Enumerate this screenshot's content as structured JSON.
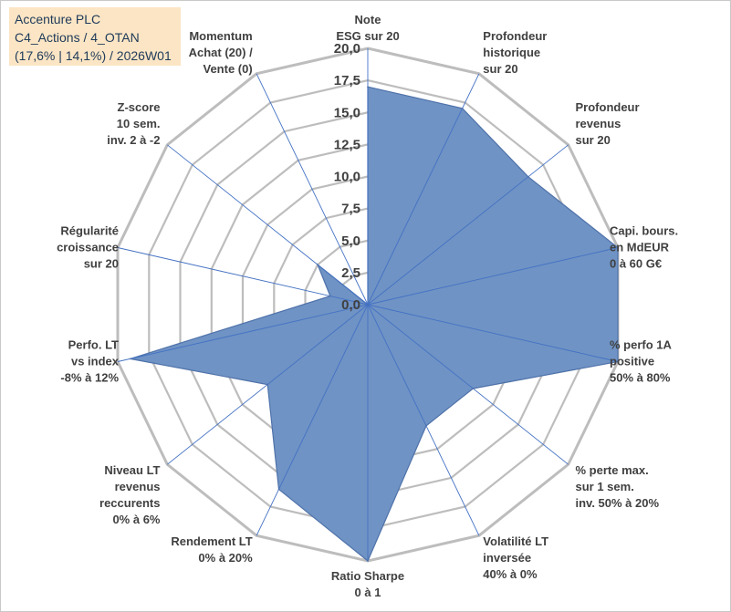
{
  "title": {
    "line1": "Accenture PLC",
    "line2": "C4_Actions / 4_OTAN",
    "line3": "(17,6% | 14,1%) / 2026W01"
  },
  "colors": {
    "fill": "#6f93c4",
    "stroke": "#4f72aa",
    "grid": "#bdbdbd",
    "spoke": "#4472c4",
    "title_bg": "#fbe5c4"
  },
  "chart_data": {
    "type": "radar",
    "rmin": 0,
    "rmax": 20,
    "tick_labels": [
      "0,0",
      "2,5",
      "5,0",
      "7,5",
      "10,0",
      "12,5",
      "15,0",
      "17,5",
      "20,0"
    ],
    "axes": [
      {
        "lines": [
          "Note",
          "ESG sur 20"
        ],
        "value": 17
      },
      {
        "lines": [
          "Profondeur",
          "historique",
          "sur 20"
        ],
        "value": 17
      },
      {
        "lines": [
          "Profondeur",
          "revenus",
          "sur 20"
        ],
        "value": 16
      },
      {
        "lines": [
          "Capi. bours.",
          "en MdEUR",
          "0 à 60 G€"
        ],
        "value": 20
      },
      {
        "lines": [
          "% perfo 1A",
          "positive",
          "50% à 80%"
        ],
        "value": 20
      },
      {
        "lines": [
          "% perte max.",
          "sur 1 sem.",
          "inv. 50% à 20%"
        ],
        "value": 10.5
      },
      {
        "lines": [
          "Volatilité LT",
          "inversée",
          "40% à 0%"
        ],
        "value": 10.5
      },
      {
        "lines": [
          "Ratio Sharpe",
          "0 à 1"
        ],
        "value": 20
      },
      {
        "lines": [
          "Rendement LT",
          "0% à 20%"
        ],
        "value": 16
      },
      {
        "lines": [
          "Niveau LT",
          "revenus",
          "reccurents",
          "0% à 6%"
        ],
        "value": 10
      },
      {
        "lines": [
          "Perfo. LT",
          "vs index",
          "-8% à 12%"
        ],
        "value": 19
      },
      {
        "lines": [
          "Régularité",
          "croissance",
          "sur 20"
        ],
        "value": 3
      },
      {
        "lines": [
          "Z-score",
          "10 sem.",
          "inv. 2 à -2"
        ],
        "value": 5
      },
      {
        "lines": [
          "Momentum",
          "Achat (20) /",
          "Vente (0)"
        ],
        "value": 0
      }
    ]
  }
}
